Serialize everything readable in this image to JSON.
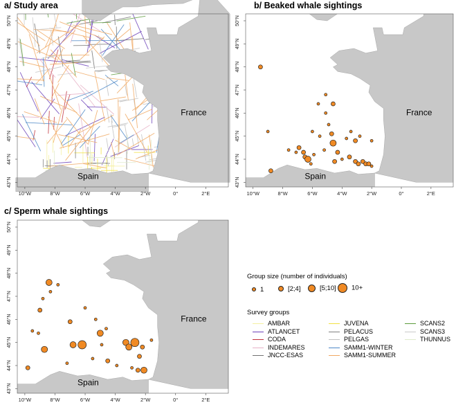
{
  "panels": {
    "a": {
      "title": "a/ Study area"
    },
    "b": {
      "title": "b/ Beaked whale sightings"
    },
    "c": {
      "title": "c/ Sperm whale sightings"
    }
  },
  "map_labels": {
    "france": "France",
    "spain": "Spain"
  },
  "lat_ticks": [
    "50°N",
    "49°N",
    "48°N",
    "47°N",
    "46°N",
    "45°N",
    "44°N",
    "43°N"
  ],
  "lon_ticks": [
    "10°W",
    "8°W",
    "6°W",
    "4°W",
    "2°W",
    "0°",
    "2°E"
  ],
  "colors": {
    "land": "#c8c8c8",
    "sea": "#ffffff",
    "marker": "#f08a24",
    "marker_edge": "#222222"
  },
  "legend": {
    "group_size_title": "Group size (number of individuals)",
    "sizes": [
      {
        "label": "1",
        "diameter": 4
      },
      {
        "label": "[2;4]",
        "diameter": 6
      },
      {
        "label": "[5;10]",
        "diameter": 9
      },
      {
        "label": "10+",
        "diameter": 12
      }
    ],
    "survey_title": "Survey groups",
    "surveys": [
      {
        "label": "AMBAR",
        "color": "#f5f0a0"
      },
      {
        "label": "ATLANCET",
        "color": "#6a3fb8"
      },
      {
        "label": "CODA",
        "color": "#c0303a"
      },
      {
        "label": "INDEMARES",
        "color": "#e6b0c6"
      },
      {
        "label": "JNCC-ESAS",
        "color": "#707070"
      },
      {
        "label": "JUVENA",
        "color": "#f2e040"
      },
      {
        "label": "PELACUS",
        "color": "#7f7f7f"
      },
      {
        "label": "PELGAS",
        "color": "#bfbfbf"
      },
      {
        "label": "SAMM1-WINTER",
        "color": "#4a86c6"
      },
      {
        "label": "SAMM1-SUMMER",
        "color": "#f0a862"
      },
      {
        "label": "SCANS2",
        "color": "#5a9a3a"
      },
      {
        "label": "SCANS3",
        "color": "#c9c9c9"
      },
      {
        "label": "THUNNUS",
        "color": "#dfeacb"
      }
    ]
  },
  "sightings": {
    "beaked": [
      {
        "lon": -9.5,
        "lat": 48.0,
        "size": 2
      },
      {
        "lon": -9.0,
        "lat": 45.2,
        "size": 1
      },
      {
        "lon": -8.8,
        "lat": 43.5,
        "size": 2
      },
      {
        "lon": -7.6,
        "lat": 44.4,
        "size": 1
      },
      {
        "lon": -6.9,
        "lat": 44.5,
        "size": 2
      },
      {
        "lon": -6.6,
        "lat": 44.3,
        "size": 2
      },
      {
        "lon": -6.5,
        "lat": 44.1,
        "size": 2
      },
      {
        "lon": -6.3,
        "lat": 44.0,
        "size": 3
      },
      {
        "lon": -5.9,
        "lat": 44.2,
        "size": 1
      },
      {
        "lon": -6.0,
        "lat": 45.2,
        "size": 1
      },
      {
        "lon": -5.5,
        "lat": 45.0,
        "size": 1
      },
      {
        "lon": -5.6,
        "lat": 46.4,
        "size": 1
      },
      {
        "lon": -5.1,
        "lat": 46.8,
        "size": 1
      },
      {
        "lon": -4.6,
        "lat": 46.4,
        "size": 2
      },
      {
        "lon": -5.1,
        "lat": 46.0,
        "size": 1
      },
      {
        "lon": -4.9,
        "lat": 45.5,
        "size": 1
      },
      {
        "lon": -4.7,
        "lat": 45.1,
        "size": 2
      },
      {
        "lon": -4.6,
        "lat": 44.7,
        "size": 3
      },
      {
        "lon": -4.3,
        "lat": 44.3,
        "size": 2
      },
      {
        "lon": -4.0,
        "lat": 44.0,
        "size": 1
      },
      {
        "lon": -4.5,
        "lat": 43.9,
        "size": 2
      },
      {
        "lon": -3.7,
        "lat": 44.9,
        "size": 1
      },
      {
        "lon": -3.4,
        "lat": 45.2,
        "size": 1
      },
      {
        "lon": -3.1,
        "lat": 44.8,
        "size": 2
      },
      {
        "lon": -2.8,
        "lat": 45.0,
        "size": 1
      },
      {
        "lon": -3.5,
        "lat": 44.1,
        "size": 2
      },
      {
        "lon": -3.1,
        "lat": 43.9,
        "size": 2
      },
      {
        "lon": -2.9,
        "lat": 43.8,
        "size": 2
      },
      {
        "lon": -2.6,
        "lat": 43.9,
        "size": 2
      },
      {
        "lon": -2.4,
        "lat": 43.8,
        "size": 2
      },
      {
        "lon": -2.2,
        "lat": 43.8,
        "size": 2
      },
      {
        "lon": -2.0,
        "lat": 43.7,
        "size": 1
      },
      {
        "lon": -2.0,
        "lat": 44.8,
        "size": 1
      },
      {
        "lon": -5.2,
        "lat": 44.4,
        "size": 1
      },
      {
        "lon": -6.1,
        "lat": 43.8,
        "size": 1
      },
      {
        "lon": -7.1,
        "lat": 44.3,
        "size": 1
      }
    ],
    "sperm": [
      {
        "lon": -9.8,
        "lat": 43.9,
        "size": 2
      },
      {
        "lon": -9.5,
        "lat": 45.5,
        "size": 1
      },
      {
        "lon": -9.1,
        "lat": 45.4,
        "size": 1
      },
      {
        "lon": -8.8,
        "lat": 46.9,
        "size": 1
      },
      {
        "lon": -9.0,
        "lat": 46.4,
        "size": 2
      },
      {
        "lon": -8.4,
        "lat": 47.6,
        "size": 3
      },
      {
        "lon": -8.3,
        "lat": 47.2,
        "size": 1
      },
      {
        "lon": -7.8,
        "lat": 47.5,
        "size": 1
      },
      {
        "lon": -8.7,
        "lat": 44.7,
        "size": 3
      },
      {
        "lon": -7.0,
        "lat": 45.9,
        "size": 2
      },
      {
        "lon": -6.8,
        "lat": 44.9,
        "size": 3
      },
      {
        "lon": -6.2,
        "lat": 44.9,
        "size": 4
      },
      {
        "lon": -6.0,
        "lat": 46.5,
        "size": 1
      },
      {
        "lon": -5.3,
        "lat": 46.0,
        "size": 1
      },
      {
        "lon": -5.0,
        "lat": 45.4,
        "size": 3
      },
      {
        "lon": -4.6,
        "lat": 45.6,
        "size": 1
      },
      {
        "lon": -4.9,
        "lat": 44.9,
        "size": 1
      },
      {
        "lon": -4.5,
        "lat": 44.2,
        "size": 2
      },
      {
        "lon": -5.5,
        "lat": 44.3,
        "size": 1
      },
      {
        "lon": -3.3,
        "lat": 45.0,
        "size": 3
      },
      {
        "lon": -3.1,
        "lat": 44.8,
        "size": 3
      },
      {
        "lon": -2.7,
        "lat": 45.0,
        "size": 4
      },
      {
        "lon": -2.4,
        "lat": 44.4,
        "size": 2
      },
      {
        "lon": -2.2,
        "lat": 44.8,
        "size": 2
      },
      {
        "lon": -2.1,
        "lat": 43.8,
        "size": 3
      },
      {
        "lon": -2.5,
        "lat": 43.8,
        "size": 2
      },
      {
        "lon": -2.9,
        "lat": 43.9,
        "size": 1
      },
      {
        "lon": -3.9,
        "lat": 44.0,
        "size": 1
      },
      {
        "lon": -1.6,
        "lat": 45.1,
        "size": 1
      },
      {
        "lon": -7.2,
        "lat": 44.1,
        "size": 1
      }
    ]
  }
}
